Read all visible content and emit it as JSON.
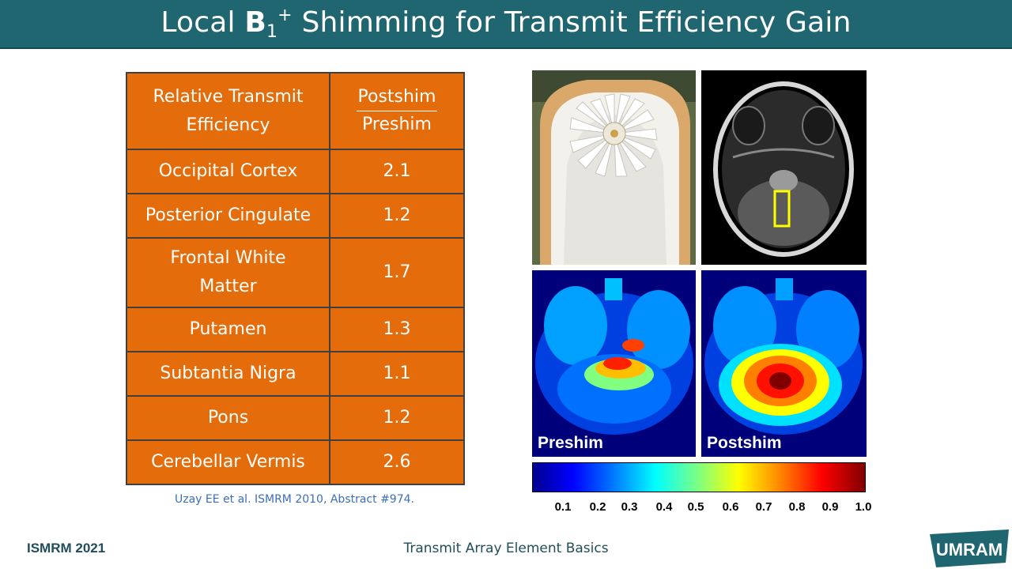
{
  "title": {
    "prefix": "Local ",
    "symbol": "B",
    "subscript": "1",
    "superscript": "+",
    "suffix": " Shimming for Transmit Efficiency Gain"
  },
  "table": {
    "header": {
      "label": "Relative Transmit Efficiency",
      "ratio_numerator": "Postshim",
      "ratio_denominator": "Preshim"
    },
    "rows": [
      {
        "region": "Occipital Cortex",
        "value": "2.1"
      },
      {
        "region": "Posterior Cingulate",
        "value": "1.2"
      },
      {
        "region": "Frontal White Matter",
        "value": "1.7"
      },
      {
        "region": "Putamen",
        "value": "1.3"
      },
      {
        "region": "Subtantia Nigra",
        "value": "1.1"
      },
      {
        "region": "Pons",
        "value": "1.2"
      },
      {
        "region": "Cerebellar Vermis",
        "value": "2.6"
      }
    ]
  },
  "citation": "Uzay EE et al. ISMRM 2010, Abstract #974.",
  "maps": {
    "pre_label": "Preshim",
    "post_label": "Postshim"
  },
  "colorbar": {
    "ticks": [
      "0.1",
      "0.2",
      "0.3",
      "0.4",
      "0.5",
      "0.6",
      "0.7",
      "0.8",
      "0.9",
      "1.0"
    ],
    "colors": [
      "#00008f",
      "#0000ff",
      "#0080ff",
      "#00ffff",
      "#80ff80",
      "#ffff00",
      "#ff8000",
      "#ff0000",
      "#800000"
    ]
  },
  "footer": {
    "left": "ISMRM 2021",
    "center": "Transmit Array Element Basics",
    "logo_text": "UMRAM"
  },
  "colors": {
    "title_bar": "#1f6670",
    "table_fill": "#e46c0a",
    "table_border": "#404040",
    "citation": "#3c6fb6",
    "roi_box": "#ffff00"
  }
}
